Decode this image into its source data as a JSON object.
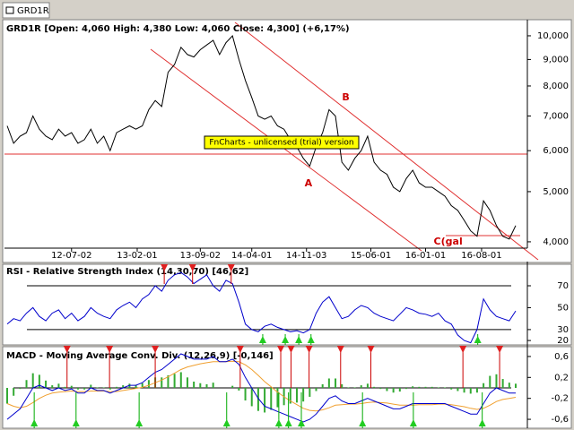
{
  "tab": "GRD1R",
  "watermark": "FnCharts - unlicensed (trial) version",
  "chart_data": [
    {
      "type": "line",
      "title": "GRD1R [Open: 4,060  High: 4,380  Low: 4,060  Close: 4,300] (+6,17%)",
      "log": true,
      "xlim": [
        0,
        79
      ],
      "xticks": [
        {
          "value": 10,
          "label": "12-07-02"
        },
        {
          "value": 20.2,
          "label": "13-02-01"
        },
        {
          "value": 30,
          "label": "13-09-02"
        },
        {
          "value": 38,
          "label": "14-04-01"
        },
        {
          "value": 46.5,
          "label": "14-11-03"
        },
        {
          "value": 56.5,
          "label": "15-06-01"
        },
        {
          "value": 65,
          "label": "16-01-01"
        },
        {
          "value": 73.7,
          "label": "16-08-01"
        }
      ],
      "ylim": [
        3920,
        10530
      ],
      "yticks": [
        {
          "value": 4000,
          "label": "4,000"
        },
        {
          "value": 5000,
          "label": "5,000"
        },
        {
          "value": 6000,
          "label": "6,000"
        },
        {
          "value": 7000,
          "label": "7,000"
        },
        {
          "value": 8000,
          "label": "8,000"
        },
        {
          "value": 9000,
          "label": "9,000"
        },
        {
          "value": 10000,
          "label": "10,000"
        }
      ],
      "series": [
        {
          "name": "Close",
          "color": "#000000",
          "style": "line",
          "values": [
            6700,
            6200,
            6400,
            6500,
            7000,
            6600,
            6400,
            6300,
            6600,
            6400,
            6500,
            6200,
            6300,
            6600,
            6200,
            6400,
            6000,
            6500,
            6600,
            6700,
            6600,
            6700,
            7200,
            7500,
            7300,
            8500,
            8800,
            9500,
            9200,
            9100,
            9400,
            9600,
            9800,
            9200,
            9700,
            10000,
            9000,
            8200,
            7600,
            7000,
            6900,
            7000,
            6700,
            6600,
            6300,
            6100,
            5800,
            5600,
            6100,
            6500,
            7200,
            7000,
            5700,
            5500,
            5800,
            6000,
            6400,
            5700,
            5500,
            5400,
            5100,
            5000,
            5300,
            5500,
            5200,
            5100,
            5100,
            5000,
            4900,
            4700,
            4600,
            4400,
            4200,
            4100,
            4800,
            4600,
            4300,
            4100,
            4050,
            4300
          ]
        }
      ],
      "annotations": [
        {
          "text": "A",
          "x": 46.8,
          "y": 5180
        },
        {
          "text": "B",
          "x": 52.6,
          "y": 7600
        },
        {
          "text": "C(gal",
          "x": 68.5,
          "y": 4000
        }
      ]
    },
    {
      "type": "line",
      "title": "RSI - Relative Strength Index (14,30,70) [46,62]",
      "xlim": [
        0,
        79
      ],
      "ylim": [
        16,
        88
      ],
      "yticks": [
        70,
        50,
        30,
        20
      ],
      "levels": [
        70,
        30
      ],
      "series": [
        {
          "name": "RSI",
          "color": "#0000cc",
          "style": "line",
          "values": [
            35,
            40,
            38,
            45,
            50,
            42,
            38,
            45,
            48,
            40,
            45,
            38,
            42,
            50,
            45,
            42,
            40,
            48,
            52,
            55,
            50,
            58,
            62,
            70,
            65,
            75,
            80,
            82,
            78,
            72,
            76,
            80,
            70,
            65,
            75,
            72,
            55,
            35,
            30,
            28,
            33,
            35,
            32,
            30,
            28,
            29,
            27,
            30,
            45,
            55,
            60,
            50,
            40,
            42,
            48,
            52,
            50,
            45,
            42,
            40,
            38,
            44,
            50,
            48,
            45,
            44,
            42,
            45,
            38,
            35,
            25,
            20,
            18,
            30,
            58,
            48,
            42,
            40,
            38,
            47
          ]
        }
      ],
      "sell": [
        24.4,
        28.8,
        34.8
      ],
      "buy": [
        39.7,
        43.2,
        45.3,
        47.2,
        73.1
      ]
    },
    {
      "type": "line",
      "title": "MACD - Moving Average Conv. Div. (12,26,9) [-0,146]",
      "xlim": [
        0,
        79
      ],
      "ylim": [
        -0.77,
        0.77
      ],
      "zero_line": true,
      "yticks": [
        {
          "value": 0.6,
          "label": "0,6"
        },
        {
          "value": 0.2,
          "label": "0,2"
        },
        {
          "value": -0.2,
          "label": "-0,2"
        },
        {
          "value": -0.6,
          "label": "-0,6"
        }
      ],
      "series": [
        {
          "name": "Histogram",
          "color": "#33aa33",
          "style": "bar",
          "values": [
            -0.3,
            -0.15,
            -0.02,
            0.15,
            0.28,
            0.25,
            0.14,
            0.05,
            0.08,
            0.02,
            0.04,
            -0.03,
            -0.03,
            0.06,
            0.01,
            0.01,
            -0.03,
            0.02,
            0.05,
            0.08,
            0.06,
            0.09,
            0.15,
            0.2,
            0.2,
            0.24,
            0.27,
            0.3,
            0.2,
            0.12,
            0.09,
            0.07,
            0.1,
            0,
            0,
            0.04,
            -0.05,
            -0.24,
            -0.35,
            -0.44,
            -0.47,
            -0.42,
            -0.37,
            -0.33,
            -0.3,
            -0.28,
            -0.26,
            -0.17,
            -0.06,
            0.07,
            0.18,
            0.18,
            0.07,
            0.01,
            0.01,
            0.05,
            0.08,
            0.02,
            -0.02,
            -0.06,
            -0.09,
            -0.07,
            -0.02,
            0.03,
            0.02,
            0.02,
            0.02,
            0.01,
            0.01,
            -0.03,
            -0.06,
            -0.09,
            -0.11,
            -0.09,
            0.09,
            0.23,
            0.26,
            0.17,
            0.1,
            0.08
          ]
        },
        {
          "name": "Signal",
          "color": "#f0a030",
          "style": "line",
          "values": [
            -0.3,
            -0.35,
            -0.38,
            -0.35,
            -0.28,
            -0.2,
            -0.14,
            -0.1,
            -0.08,
            -0.07,
            -0.06,
            -0.07,
            -0.07,
            -0.06,
            -0.06,
            -0.06,
            -0.07,
            -0.07,
            -0.05,
            -0.03,
            -0.01,
            0.01,
            0.05,
            0.1,
            0.15,
            0.21,
            0.28,
            0.35,
            0.4,
            0.43,
            0.46,
            0.48,
            0.5,
            0.5,
            0.5,
            0.51,
            0.5,
            0.44,
            0.35,
            0.24,
            0.12,
            0.02,
            -0.08,
            -0.17,
            -0.25,
            -0.32,
            -0.39,
            -0.43,
            -0.44,
            -0.42,
            -0.38,
            -0.33,
            -0.32,
            -0.31,
            -0.31,
            -0.3,
            -0.28,
            -0.27,
            -0.28,
            -0.29,
            -0.31,
            -0.33,
            -0.33,
            -0.33,
            -0.32,
            -0.32,
            -0.32,
            -0.31,
            -0.31,
            -0.32,
            -0.34,
            -0.36,
            -0.39,
            -0.41,
            -0.39,
            -0.33,
            -0.26,
            -0.22,
            -0.2,
            -0.18
          ]
        },
        {
          "name": "MACD",
          "color": "#0000cc",
          "style": "line",
          "values": [
            -0.6,
            -0.5,
            -0.4,
            -0.2,
            0,
            0.05,
            0,
            -0.05,
            0,
            -0.05,
            -0.02,
            -0.1,
            -0.1,
            0,
            -0.05,
            -0.05,
            -0.1,
            -0.05,
            0,
            0.05,
            0.05,
            0.1,
            0.2,
            0.3,
            0.35,
            0.45,
            0.55,
            0.65,
            0.6,
            0.55,
            0.55,
            0.55,
            0.6,
            0.5,
            0.5,
            0.55,
            0.45,
            0.2,
            0,
            -0.2,
            -0.35,
            -0.4,
            -0.45,
            -0.5,
            -0.55,
            -0.6,
            -0.65,
            -0.6,
            -0.5,
            -0.35,
            -0.2,
            -0.15,
            -0.25,
            -0.3,
            -0.3,
            -0.25,
            -0.2,
            -0.25,
            -0.3,
            -0.35,
            -0.4,
            -0.4,
            -0.35,
            -0.3,
            -0.3,
            -0.3,
            -0.3,
            -0.3,
            -0.3,
            -0.35,
            -0.4,
            -0.45,
            -0.5,
            -0.5,
            -0.3,
            -0.1,
            0,
            -0.05,
            -0.1,
            -0.1
          ]
        }
      ],
      "sell": [
        9.3,
        15.9,
        23,
        36.2,
        42.5,
        44.1,
        46.9,
        51.8,
        56.5,
        70.8,
        76.5
      ],
      "buy": [
        4.2,
        10.7,
        20.5,
        34.1,
        42.2,
        43.7,
        45.7,
        55.2,
        63.1,
        73.8
      ]
    }
  ]
}
